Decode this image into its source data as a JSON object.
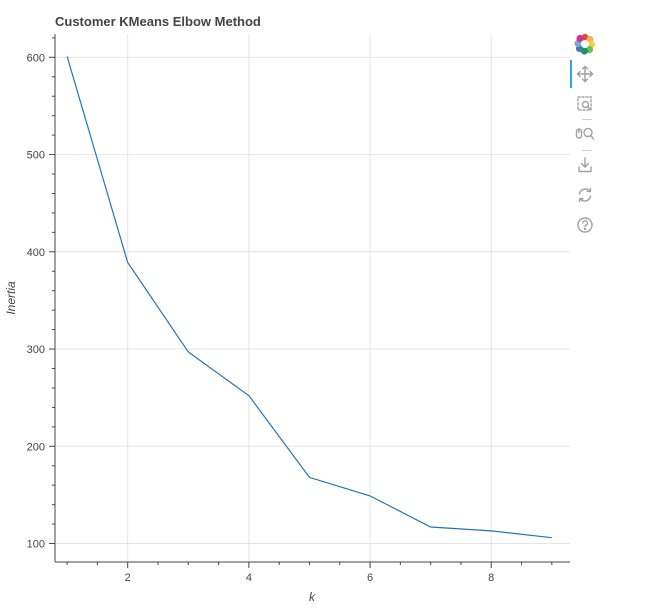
{
  "chart_data": {
    "type": "line",
    "title": "Customer KMeans Elbow Method",
    "xlabel": "k",
    "ylabel": "Inertia",
    "x": [
      1,
      2,
      3,
      4,
      5,
      6,
      7,
      8,
      9
    ],
    "series": [
      {
        "values": [
          601,
          389,
          297,
          252,
          168,
          149,
          117,
          113,
          106
        ]
      }
    ],
    "xlim": [
      0.8,
      9.3
    ],
    "ylim": [
      81,
      624
    ],
    "xticks": [
      2,
      4,
      6,
      8
    ],
    "yticks": [
      100,
      200,
      300,
      400,
      500,
      600
    ],
    "grid": true,
    "line_color": "#1f77b4"
  },
  "toolbar": {
    "tools": [
      {
        "icon": "bokeh-logo-icon",
        "tooltip": "Bokeh"
      },
      {
        "icon": "pan-icon",
        "tooltip": "Pan",
        "active": true
      },
      {
        "icon": "box-zoom-icon",
        "tooltip": "Box Zoom"
      },
      {
        "icon": "wheel-zoom-icon",
        "tooltip": "Wheel Zoom"
      },
      {
        "icon": "save-icon",
        "tooltip": "Save"
      },
      {
        "icon": "reset-icon",
        "tooltip": "Reset"
      },
      {
        "icon": "help-icon",
        "tooltip": "Help"
      }
    ],
    "accent_color": "#26aae1",
    "icon_color": "#a0a0a0"
  }
}
